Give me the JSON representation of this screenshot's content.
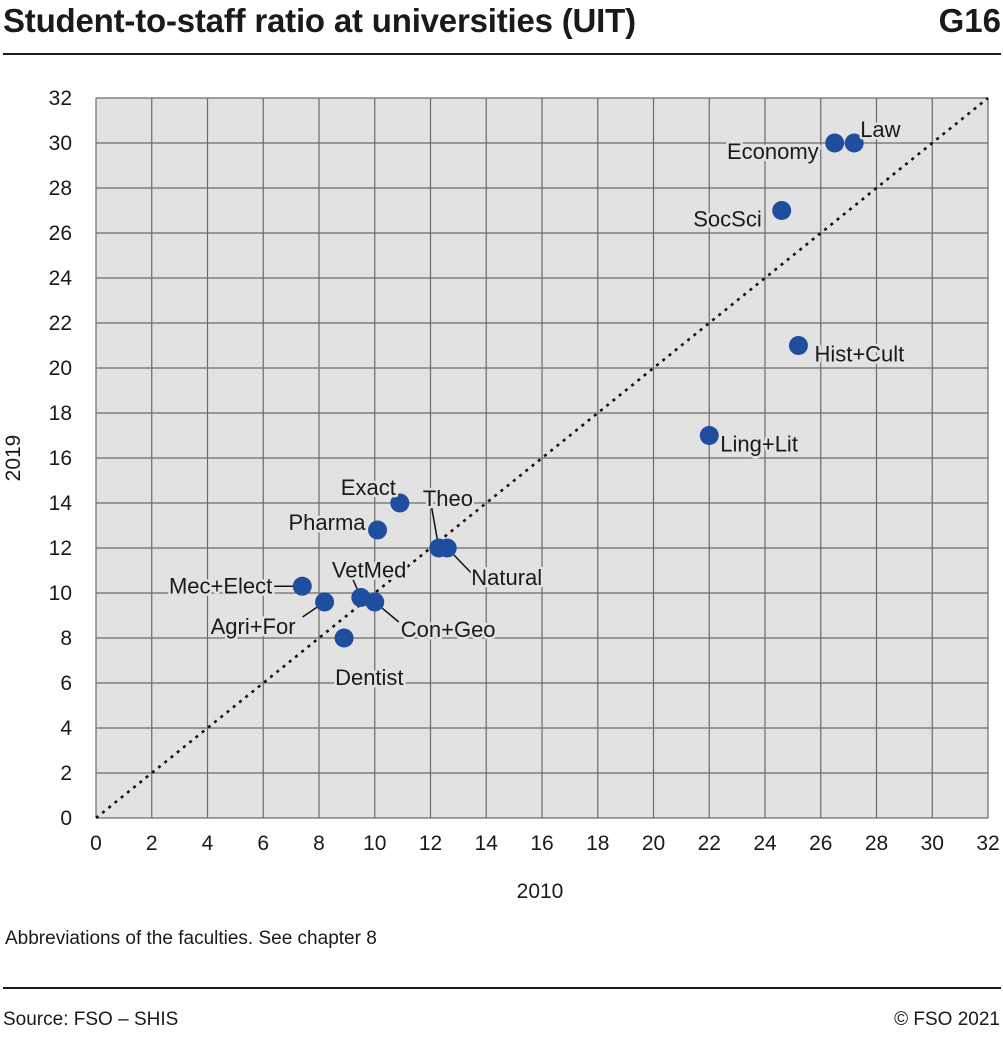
{
  "header": {
    "title": "Student-to-staff ratio at universities (UIT)",
    "code": "G16"
  },
  "chart_data": {
    "type": "scatter",
    "xlabel": "2010",
    "ylabel": "2019",
    "xlim": [
      0,
      32
    ],
    "ylim": [
      0,
      32
    ],
    "xticks": [
      0,
      2,
      4,
      6,
      8,
      10,
      12,
      14,
      16,
      18,
      20,
      22,
      24,
      26,
      28,
      30,
      32
    ],
    "yticks": [
      0,
      2,
      4,
      6,
      8,
      10,
      12,
      14,
      16,
      18,
      20,
      22,
      24,
      26,
      28,
      30,
      32
    ],
    "grid": true,
    "reference_line": "y = x (dotted)",
    "marker_color": "#1f4e9e",
    "plot_background": "#e2e2e2",
    "points": [
      {
        "label": "Law",
        "x": 27.2,
        "y": 30.0
      },
      {
        "label": "Economy",
        "x": 26.5,
        "y": 30.0
      },
      {
        "label": "SocSci",
        "x": 24.6,
        "y": 27.0
      },
      {
        "label": "Hist+Cult",
        "x": 25.2,
        "y": 21.0
      },
      {
        "label": "Ling+Lit",
        "x": 22.0,
        "y": 17.0
      },
      {
        "label": "Exact",
        "x": 10.9,
        "y": 14.0
      },
      {
        "label": "Pharma",
        "x": 10.1,
        "y": 12.8
      },
      {
        "label": "Theo",
        "x": 12.3,
        "y": 12.0
      },
      {
        "label": "Natural",
        "x": 12.6,
        "y": 12.0
      },
      {
        "label": "Mec+Elect",
        "x": 7.4,
        "y": 10.3
      },
      {
        "label": "VetMed",
        "x": 9.5,
        "y": 9.8
      },
      {
        "label": "Con+Geo",
        "x": 10.0,
        "y": 9.6
      },
      {
        "label": "Agri+For",
        "x": 8.2,
        "y": 9.6
      },
      {
        "label": "Dentist",
        "x": 8.9,
        "y": 8.0
      }
    ]
  },
  "footnote": "Abbreviations of the faculties. See chapter 8",
  "source": "Source: FSO – SHIS",
  "copyright": "© FSO 2021"
}
